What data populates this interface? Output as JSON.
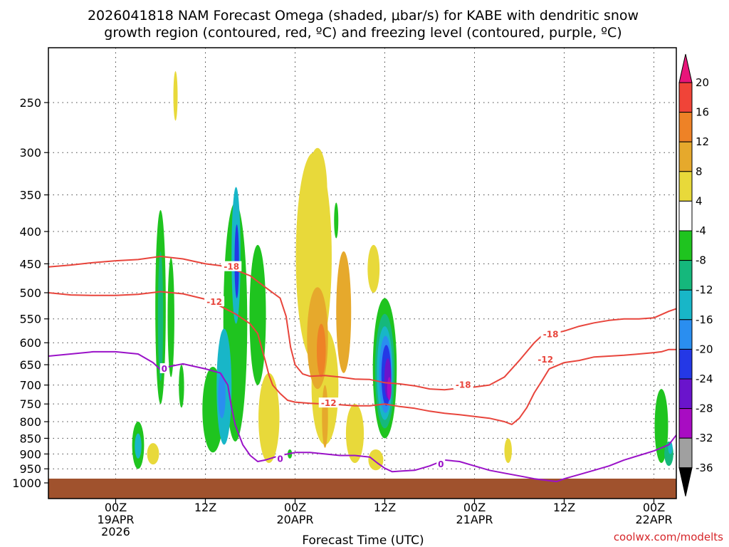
{
  "chart_data": {
    "type": "heatmap",
    "title_line1": "2026041818 NAM Forecast Omega (shaded, μbar/s) for KABE with dendritic snow",
    "title_line2": "growth region (contoured, red, ºC) and freezing level (contoured, purple, ºC)",
    "xlabel": "Forecast Time (UTC)",
    "credit": "coolwx.com/modelts",
    "y_ticks": [
      250,
      300,
      350,
      400,
      450,
      500,
      550,
      600,
      650,
      700,
      750,
      800,
      850,
      900,
      950,
      1000
    ],
    "y_range": [
      200,
      1000
    ],
    "x_range_hours": [
      -9,
      75
    ],
    "x_ticks": [
      {
        "hour": 0,
        "line1": "00Z",
        "line2": "19APR",
        "line3": "2026"
      },
      {
        "hour": 12,
        "line1": "12Z",
        "line2": "",
        "line3": ""
      },
      {
        "hour": 24,
        "line1": "00Z",
        "line2": "20APR",
        "line3": ""
      },
      {
        "hour": 36,
        "line1": "12Z",
        "line2": "",
        "line3": ""
      },
      {
        "hour": 48,
        "line1": "00Z",
        "line2": "21APR",
        "line3": ""
      },
      {
        "hour": 60,
        "line1": "12Z",
        "line2": "",
        "line3": ""
      },
      {
        "hour": 72,
        "line1": "00Z",
        "line2": "22APR",
        "line3": ""
      }
    ],
    "colorbar": [
      {
        "from": 20,
        "to": 24,
        "color": "#e8157a"
      },
      {
        "from": 16,
        "to": 20,
        "color": "#f04438"
      },
      {
        "from": 12,
        "to": 16,
        "color": "#ee8226"
      },
      {
        "from": 8,
        "to": 12,
        "color": "#e6a92c"
      },
      {
        "from": 4,
        "to": 8,
        "color": "#e8d93a"
      },
      {
        "from": -4,
        "to": 4,
        "color": "#ffffff"
      },
      {
        "from": -8,
        "to": -4,
        "color": "#1fc41f"
      },
      {
        "from": -12,
        "to": -8,
        "color": "#15b87c"
      },
      {
        "from": -16,
        "to": -12,
        "color": "#18b6c8"
      },
      {
        "from": -20,
        "to": -16,
        "color": "#2a8ef0"
      },
      {
        "from": -24,
        "to": -20,
        "color": "#2438e6"
      },
      {
        "from": -28,
        "to": -24,
        "color": "#6a14cc"
      },
      {
        "from": -32,
        "to": -28,
        "color": "#a80cc2"
      },
      {
        "from": -36,
        "to": -32,
        "color": "#a0a0a0"
      }
    ],
    "colorbar_labels": [
      "20",
      "16",
      "12",
      "8",
      "4",
      "-4",
      "-8",
      "-12",
      "-16",
      "-20",
      "-24",
      "-28",
      "-32",
      "-36"
    ],
    "contour_labels": [
      {
        "text": "-18",
        "color": "#e8453c",
        "hour": 15.5,
        "p": 455
      },
      {
        "text": "-12",
        "color": "#e8453c",
        "hour": 13.2,
        "p": 517
      },
      {
        "text": "-12",
        "color": "#e8453c",
        "hour": 28.5,
        "p": 748
      },
      {
        "text": "-18",
        "color": "#e8453c",
        "hour": 46.5,
        "p": 700
      },
      {
        "text": "-18",
        "color": "#e8453c",
        "hour": 58.2,
        "p": 582
      },
      {
        "text": "-12",
        "color": "#e8453c",
        "hour": 57.5,
        "p": 638
      },
      {
        "text": "0",
        "color": "#9a12c8",
        "hour": 6.5,
        "p": 660
      },
      {
        "text": "0",
        "color": "#9a12c8",
        "hour": 22.0,
        "p": 917
      },
      {
        "text": "0",
        "color": "#9a12c8",
        "hour": 43.5,
        "p": 935
      }
    ],
    "omega_cells": [
      {
        "c": 4,
        "h": 5.0,
        "p": 900,
        "rh": 0.8,
        "rp": 35,
        "hi": 4
      },
      {
        "c": -4,
        "h": 3.0,
        "p": 875,
        "rh": 0.8,
        "rp": 75
      },
      {
        "c": -12,
        "h": 3.0,
        "p": 875,
        "rh": 0.45,
        "rp": 40
      },
      {
        "c": -4,
        "h": 6.0,
        "p": 560,
        "rh": 0.7,
        "rp": 190
      },
      {
        "c": -8,
        "h": 6.0,
        "p": 560,
        "rh": 0.35,
        "rp": 130
      },
      {
        "c": -4,
        "h": 7.4,
        "p": 560,
        "rh": 0.45,
        "rp": 120
      },
      {
        "c": -4,
        "h": 8.8,
        "p": 705,
        "rh": 0.35,
        "rp": 55
      },
      {
        "c": 4,
        "h": 8.0,
        "p": 245,
        "rh": 0.2,
        "rp": 22
      },
      {
        "c": -4,
        "h": 13.0,
        "p": 775,
        "rh": 1.4,
        "rp": 120
      },
      {
        "c": -4,
        "h": 16.0,
        "p": 610,
        "rh": 1.6,
        "rp": 250
      },
      {
        "c": -12,
        "h": 14.5,
        "p": 720,
        "rh": 1.0,
        "rp": 150
      },
      {
        "c": -16,
        "h": 14.2,
        "p": 730,
        "rh": 0.5,
        "rp": 60
      },
      {
        "c": -12,
        "h": 16.1,
        "p": 450,
        "rh": 0.6,
        "rp": 110
      },
      {
        "c": -20,
        "h": 16.2,
        "p": 450,
        "rh": 0.3,
        "rp": 60
      },
      {
        "c": -4,
        "h": 19.0,
        "p": 560,
        "rh": 1.1,
        "rp": 140
      },
      {
        "c": 4,
        "h": 20.5,
        "p": 800,
        "rh": 1.4,
        "rp": 130
      },
      {
        "c": 4,
        "h": 26.5,
        "p": 470,
        "rh": 2.4,
        "rp": 170
      },
      {
        "c": 4,
        "h": 27.0,
        "p": 350,
        "rh": 1.3,
        "rp": 55
      },
      {
        "c": 4,
        "h": 28.0,
        "p": 720,
        "rh": 1.8,
        "rp": 150
      },
      {
        "c": 8,
        "h": 27.0,
        "p": 600,
        "rh": 1.4,
        "rp": 110
      },
      {
        "c": 12,
        "h": 27.5,
        "p": 620,
        "rh": 0.6,
        "rp": 60
      },
      {
        "c": 8,
        "h": 30.5,
        "p": 550,
        "rh": 1.0,
        "rp": 120
      },
      {
        "c": 8,
        "h": 28.0,
        "p": 790,
        "rh": 0.4,
        "rp": 90
      },
      {
        "c": 4,
        "h": 32.0,
        "p": 840,
        "rh": 1.2,
        "rp": 90
      },
      {
        "c": 4,
        "h": 34.5,
        "p": 460,
        "rh": 0.8,
        "rp": 40
      },
      {
        "c": 4,
        "h": 34.8,
        "p": 920,
        "rh": 1.0,
        "rp": 35
      },
      {
        "c": -4,
        "h": 29.5,
        "p": 385,
        "rh": 0.2,
        "rp": 25
      },
      {
        "c": -4,
        "h": 23.3,
        "p": 900,
        "rh": 0.3,
        "rp": 15
      },
      {
        "c": -4,
        "h": 36.0,
        "p": 680,
        "rh": 1.6,
        "rp": 170
      },
      {
        "c": -8,
        "h": 36.0,
        "p": 680,
        "rh": 1.3,
        "rp": 140
      },
      {
        "c": -12,
        "h": 36.0,
        "p": 680,
        "rh": 1.05,
        "rp": 115
      },
      {
        "c": -16,
        "h": 36.1,
        "p": 680,
        "rh": 0.85,
        "rp": 95
      },
      {
        "c": -20,
        "h": 36.2,
        "p": 680,
        "rh": 0.65,
        "rp": 75
      },
      {
        "c": -24,
        "h": 36.4,
        "p": 685,
        "rh": 0.45,
        "rp": 50
      },
      {
        "c": -28,
        "h": 36.6,
        "p": 710,
        "rh": 0.28,
        "rp": 30
      },
      {
        "c": 4,
        "h": 52.5,
        "p": 890,
        "rh": 0.5,
        "rp": 40
      },
      {
        "c": -4,
        "h": 73.0,
        "p": 820,
        "rh": 0.9,
        "rp": 110
      },
      {
        "c": -8,
        "h": 74.0,
        "p": 900,
        "rh": 0.6,
        "rp": 40
      },
      {
        "c": -12,
        "h": 74.2,
        "p": 880,
        "rh": 0.3,
        "rp": 20
      }
    ],
    "red_contours": [
      {
        "name": "-18 west",
        "points": [
          [
            -9,
            455
          ],
          [
            -6,
            452
          ],
          [
            -3,
            448
          ],
          [
            0,
            445
          ],
          [
            3,
            443
          ],
          [
            6,
            438
          ],
          [
            9,
            442
          ],
          [
            12,
            450
          ],
          [
            14,
            453
          ],
          [
            16,
            460
          ],
          [
            18,
            470
          ],
          [
            20,
            490
          ],
          [
            22,
            510
          ],
          [
            22.8,
            545
          ],
          [
            23.4,
            610
          ],
          [
            24.0,
            650
          ],
          [
            25,
            672
          ],
          [
            26,
            678
          ],
          [
            28,
            676
          ],
          [
            30,
            680
          ],
          [
            32,
            685
          ],
          [
            34,
            686
          ],
          [
            36,
            694
          ],
          [
            38,
            697
          ],
          [
            40,
            702
          ],
          [
            42,
            710
          ],
          [
            44,
            712
          ],
          [
            46,
            708
          ],
          [
            48,
            705
          ],
          [
            50,
            700
          ],
          [
            52,
            680
          ],
          [
            54,
            640
          ],
          [
            56,
            600
          ],
          [
            57,
            585
          ],
          [
            58,
            582
          ],
          [
            60,
            575
          ],
          [
            62,
            565
          ],
          [
            64,
            558
          ],
          [
            66,
            553
          ],
          [
            68,
            550
          ],
          [
            70,
            550
          ],
          [
            72,
            548
          ],
          [
            74,
            535
          ],
          [
            75,
            530
          ]
        ]
      },
      {
        "name": "-12",
        "points": [
          [
            -9,
            500
          ],
          [
            -6,
            504
          ],
          [
            -3,
            505
          ],
          [
            0,
            505
          ],
          [
            3,
            503
          ],
          [
            6,
            498
          ],
          [
            9,
            502
          ],
          [
            12,
            512
          ],
          [
            14,
            525
          ],
          [
            16,
            540
          ],
          [
            18,
            560
          ],
          [
            19,
            580
          ],
          [
            19.5,
            610
          ],
          [
            20,
            640
          ],
          [
            20.5,
            675
          ],
          [
            21,
            700
          ],
          [
            22,
            722
          ],
          [
            23,
            740
          ],
          [
            24,
            745
          ],
          [
            26,
            748
          ],
          [
            28,
            750
          ],
          [
            30,
            752
          ],
          [
            32,
            755
          ],
          [
            34,
            755
          ],
          [
            36,
            750
          ],
          [
            38,
            757
          ],
          [
            40,
            762
          ],
          [
            42,
            770
          ],
          [
            44,
            776
          ],
          [
            46,
            780
          ],
          [
            48,
            785
          ],
          [
            50,
            790
          ],
          [
            52,
            800
          ],
          [
            53,
            808
          ],
          [
            54,
            790
          ],
          [
            55,
            760
          ],
          [
            56,
            720
          ],
          [
            57,
            690
          ],
          [
            58,
            660
          ],
          [
            60,
            645
          ],
          [
            62,
            640
          ],
          [
            64,
            632
          ],
          [
            66,
            630
          ],
          [
            68,
            628
          ],
          [
            70,
            625
          ],
          [
            72,
            622
          ],
          [
            73,
            620
          ],
          [
            74,
            615
          ],
          [
            75,
            615
          ]
        ]
      }
    ],
    "purple_contours": [
      {
        "name": "0 main",
        "points": [
          [
            -9,
            630
          ],
          [
            -6,
            625
          ],
          [
            -3,
            620
          ],
          [
            0,
            620
          ],
          [
            3,
            625
          ],
          [
            5,
            645
          ],
          [
            6,
            662
          ],
          [
            7,
            655
          ],
          [
            9,
            648
          ],
          [
            12,
            660
          ],
          [
            14,
            670
          ],
          [
            15,
            700
          ],
          [
            15.5,
            760
          ],
          [
            16,
            810
          ],
          [
            17,
            870
          ],
          [
            18,
            905
          ],
          [
            19,
            925
          ],
          [
            20,
            920
          ],
          [
            22,
            905
          ],
          [
            24,
            895
          ],
          [
            26,
            895
          ],
          [
            28,
            900
          ],
          [
            30,
            905
          ],
          [
            32,
            905
          ],
          [
            34,
            910
          ],
          [
            35,
            930
          ],
          [
            36,
            948
          ],
          [
            37,
            960
          ],
          [
            38,
            958
          ],
          [
            40,
            955
          ],
          [
            42,
            940
          ],
          [
            43,
            930
          ],
          [
            44,
            920
          ],
          [
            46,
            925
          ],
          [
            48,
            940
          ],
          [
            50,
            955
          ],
          [
            52,
            965
          ],
          [
            54,
            975
          ],
          [
            56,
            985
          ],
          [
            58,
            992
          ],
          [
            59,
            995
          ],
          [
            60,
            985
          ],
          [
            62,
            970
          ],
          [
            64,
            955
          ],
          [
            66,
            940
          ],
          [
            68,
            920
          ],
          [
            70,
            905
          ],
          [
            72,
            890
          ],
          [
            74,
            870
          ],
          [
            75,
            840
          ]
        ]
      }
    ]
  }
}
